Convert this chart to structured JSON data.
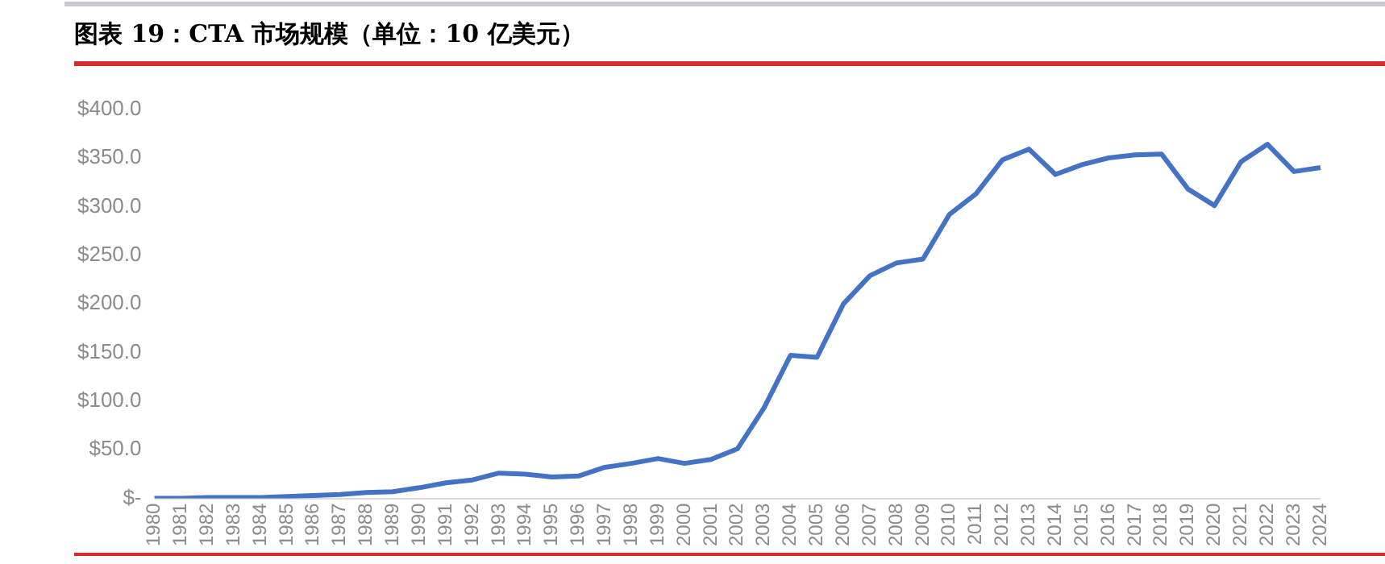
{
  "chart_data": {
    "type": "line",
    "title": "图表 19：CTA 市场规模（单位：10 亿美元）",
    "categories": [
      "1980",
      "1981",
      "1982",
      "1983",
      "1984",
      "1985",
      "1986",
      "1987",
      "1988",
      "1989",
      "1990",
      "1991",
      "1992",
      "1993",
      "1994",
      "1995",
      "1996",
      "1997",
      "1998",
      "1999",
      "2000",
      "2001",
      "2002",
      "2003",
      "2004",
      "2005",
      "2006",
      "2007",
      "2008",
      "2009",
      "2010",
      "2011",
      "2012",
      "2013",
      "2014",
      "2015",
      "2016",
      "2017",
      "2018",
      "2019",
      "2020",
      "2021",
      "2022",
      "2023",
      "2024"
    ],
    "series": [
      {
        "color": "#4472c4",
        "values": [
          0,
          0,
          1,
          1,
          1,
          2,
          3,
          4,
          6,
          7,
          11,
          16,
          19,
          26,
          25,
          22,
          23,
          32,
          36,
          41,
          36,
          40,
          51,
          93,
          147,
          145,
          200,
          229,
          242,
          246,
          292,
          313,
          348,
          359,
          333,
          343,
          350,
          353,
          354,
          318,
          301,
          346,
          364,
          336,
          340
        ]
      }
    ],
    "ylim": [
      0,
      400
    ],
    "yticks": [
      {
        "value": 0,
        "label": "$-"
      },
      {
        "value": 50,
        "label": "$50.0"
      },
      {
        "value": 100,
        "label": "$100.0"
      },
      {
        "value": 150,
        "label": "$150.0"
      },
      {
        "value": 200,
        "label": "$200.0"
      },
      {
        "value": 250,
        "label": "$250.0"
      },
      {
        "value": 300,
        "label": "$300.0"
      },
      {
        "value": 350,
        "label": "$350.0"
      },
      {
        "value": 400,
        "label": "$400.0"
      }
    ],
    "grid": false,
    "legend": false,
    "marker": "none",
    "line_style": "solid"
  }
}
